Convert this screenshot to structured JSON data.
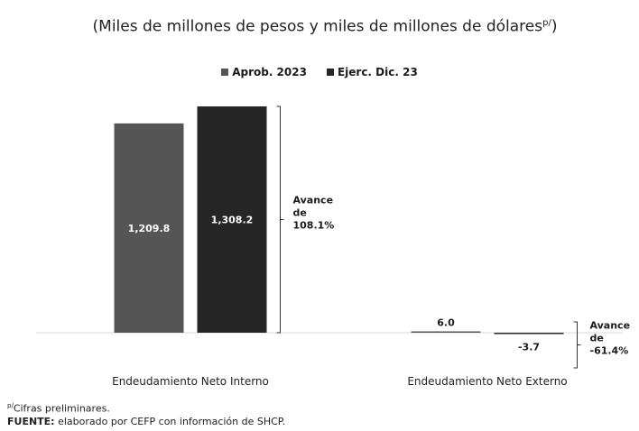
{
  "title": {
    "main": "(Miles de millones de pesos y miles de millones de dólares",
    "sup": "p/",
    "close": ")"
  },
  "legend": [
    {
      "name": "Aprob. 2023",
      "color": "#555555"
    },
    {
      "name": "Ejerc. Dic. 23",
      "color": "#262626"
    }
  ],
  "chart_data": {
    "type": "bar",
    "categories": [
      "Endeudamiento Neto Interno",
      "Endeudamiento Neto Externo"
    ],
    "series": [
      {
        "name": "Aprob. 2023",
        "values": [
          1209.8,
          6.0
        ],
        "labels": [
          "1,209.8",
          "6.0"
        ],
        "color": "#555555"
      },
      {
        "name": "Ejerc. Dic. 23",
        "values": [
          1308.2,
          -3.7
        ],
        "labels": [
          "1,308.2",
          "-3.7"
        ],
        "color": "#262626"
      }
    ],
    "annotations": [
      {
        "category": "Endeudamiento Neto Interno",
        "lines": [
          "Avance",
          "de",
          "108.1%"
        ]
      },
      {
        "category": "Endeudamiento Neto Externo",
        "lines": [
          "Avance",
          "de",
          "-61.4%"
        ]
      }
    ],
    "ylim": [
      -40,
      1308.2
    ],
    "grid": false
  },
  "footer": {
    "note_sup": "p/",
    "note": "Cifras preliminares.",
    "source_label": "FUENTE:",
    "source_text": " elaborado por CEFP con información de SHCP."
  }
}
